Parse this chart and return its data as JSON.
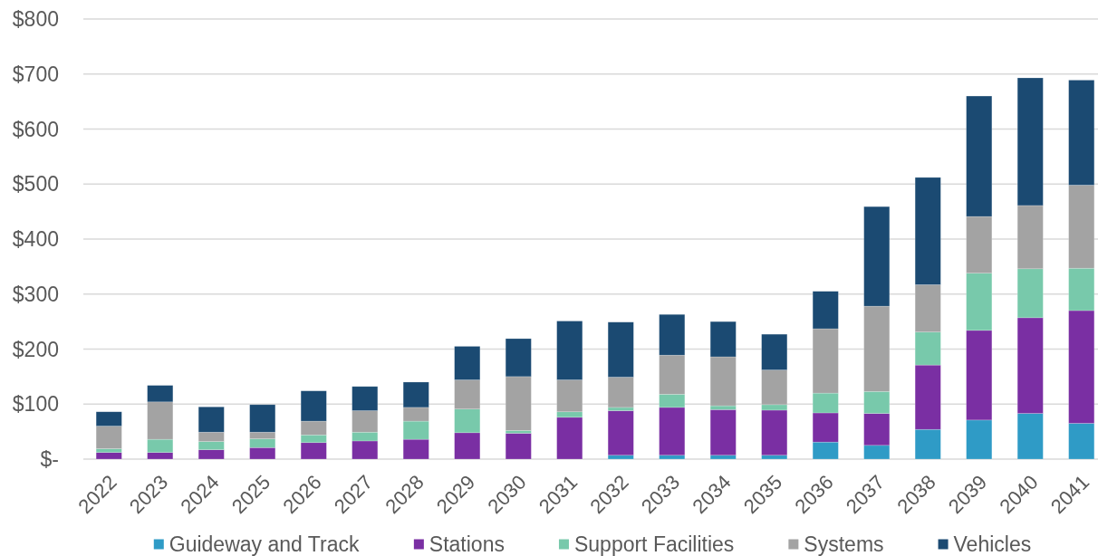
{
  "chart_data": {
    "type": "bar",
    "stacked": true,
    "categories": [
      "2022",
      "2023",
      "2024",
      "2025",
      "2026",
      "2027",
      "2028",
      "2029",
      "2030",
      "2031",
      "2032",
      "2033",
      "2034",
      "2035",
      "2036",
      "2037",
      "2038",
      "2039",
      "2040",
      "2041"
    ],
    "series": [
      {
        "name": "Guideway and Track",
        "color": "#2f9bc6",
        "values": [
          null,
          null,
          null,
          null,
          null,
          null,
          null,
          null,
          null,
          null,
          7,
          7,
          7,
          7,
          31,
          25,
          54,
          71,
          83,
          65
        ]
      },
      {
        "name": "Stations",
        "color": "#7a2fa3",
        "values": [
          12,
          12,
          17,
          21,
          30,
          33,
          36,
          48,
          47,
          76,
          81,
          87,
          83,
          82,
          53,
          58,
          117,
          163,
          174,
          205
        ]
      },
      {
        "name": "Support Facilities",
        "color": "#78c9ab",
        "values": [
          7,
          24,
          15,
          16,
          14,
          16,
          33,
          43,
          5,
          10,
          6,
          24,
          7,
          10,
          36,
          40,
          60,
          104,
          89,
          77
        ]
      },
      {
        "name": "Systems",
        "color": "#a3a3a3",
        "values": [
          41,
          68,
          17,
          12,
          25,
          39,
          25,
          53,
          98,
          58,
          55,
          71,
          89,
          63,
          117,
          155,
          86,
          103,
          115,
          151
        ]
      },
      {
        "name": "Vehicles",
        "color": "#1b4a72",
        "values": [
          26,
          30,
          46,
          50,
          55,
          44,
          46,
          61,
          69,
          107,
          100,
          74,
          64,
          65,
          68,
          181,
          195,
          219,
          232,
          191
        ]
      }
    ],
    "ylim": [
      0,
      800
    ],
    "yticks": [
      {
        "value": 0,
        "label": "$-"
      },
      {
        "value": 100,
        "label": "$100"
      },
      {
        "value": 200,
        "label": "$200"
      },
      {
        "value": 300,
        "label": "$300"
      },
      {
        "value": 400,
        "label": "$400"
      },
      {
        "value": 500,
        "label": "$500"
      },
      {
        "value": 600,
        "label": "$600"
      },
      {
        "value": 700,
        "label": "$700"
      },
      {
        "value": 800,
        "label": "$800"
      }
    ],
    "grid": "y",
    "legend": "bottom"
  }
}
